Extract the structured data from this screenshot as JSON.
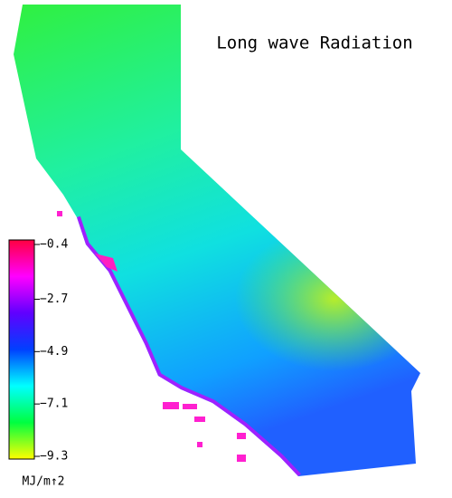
{
  "map": {
    "title": "Long wave Radiation",
    "colorbar": {
      "ticks": [
        {
          "value": -0.4,
          "label": "−0.4"
        },
        {
          "value": -2.7,
          "label": "−2.7"
        },
        {
          "value": -4.9,
          "label": "−4.9"
        },
        {
          "value": -7.1,
          "label": "−7.1"
        },
        {
          "value": -9.3,
          "label": "−9.3"
        }
      ],
      "colors": [
        "#ff0040",
        "#ff00ff",
        "#6000ff",
        "#0040ff",
        "#00ffff",
        "#00ff40",
        "#ffff00"
      ],
      "unit": "MJ/m↑2"
    }
  }
}
